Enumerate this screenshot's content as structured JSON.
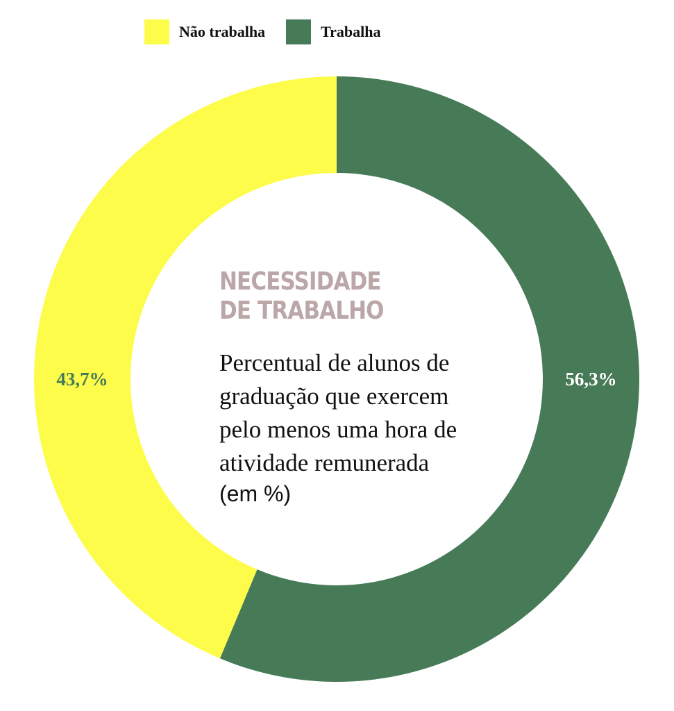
{
  "legend": [
    {
      "label": "Não trabalha",
      "color": "#fdfc4b"
    },
    {
      "label": "Trabalha",
      "color": "#477b58"
    }
  ],
  "center": {
    "title_line1": "NECESSIDADE",
    "title_line2": "DE TRABALHO",
    "subtitle_lines": [
      "Percentual de alunos de",
      "graduação que exercem",
      "pelo menos uma hora de",
      "atividade remunerada"
    ],
    "unit": "(em %)"
  },
  "chart_data": {
    "type": "pie",
    "variant": "donut",
    "title": "NECESSIDADE DE TRABALHO",
    "subtitle": "Percentual de alunos de graduação que exercem pelo menos uma hora de atividade remunerada",
    "unit": "(em %)",
    "legend_position": "top",
    "slices": [
      {
        "label": "Trabalha",
        "value": 56.3,
        "display": "56,3%",
        "color": "#477b58",
        "label_color": "#ffffff"
      },
      {
        "label": "Não trabalha",
        "value": 43.7,
        "display": "43,7%",
        "color": "#fdfc4b",
        "label_color": "#477b58"
      }
    ]
  }
}
